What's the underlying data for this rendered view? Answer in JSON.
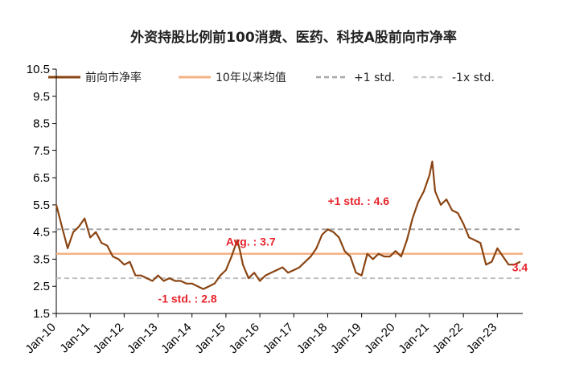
{
  "chart_data": {
    "type": "line",
    "title": "外资持股比例前100消费、医药、科技A股前向市净率",
    "xlabel": "",
    "ylabel": "",
    "ylim": [
      1.5,
      10.5
    ],
    "yticks": [
      10.5,
      9.5,
      8.5,
      7.5,
      6.5,
      5.5,
      4.5,
      3.5,
      2.5,
      1.5
    ],
    "xlim": [
      "2010-01",
      "2023-10"
    ],
    "xticks": [
      "Jan-10",
      "Jan-11",
      "Jan-12",
      "Jan-13",
      "Jan-14",
      "Jan-15",
      "Jan-16",
      "Jan-17",
      "Jan-18",
      "Jan-19",
      "Jan-20",
      "Jan-21",
      "Jan-22",
      "Jan-23"
    ],
    "grid": false,
    "legend_position": "top",
    "colors": {
      "line": "#8b4513",
      "avg": "#f4b183",
      "std": "#a6a6a6",
      "annotation": "#e8222a"
    },
    "series": [
      {
        "name": "前向市净率",
        "x": [
          "2010-01",
          "2010-03",
          "2010-05",
          "2010-07",
          "2010-09",
          "2010-11",
          "2011-01",
          "2011-03",
          "2011-05",
          "2011-07",
          "2011-09",
          "2011-11",
          "2012-01",
          "2012-03",
          "2012-05",
          "2012-07",
          "2012-09",
          "2012-11",
          "2013-01",
          "2013-03",
          "2013-05",
          "2013-07",
          "2013-09",
          "2013-11",
          "2014-01",
          "2014-03",
          "2014-05",
          "2014-07",
          "2014-09",
          "2014-11",
          "2015-01",
          "2015-03",
          "2015-05",
          "2015-06",
          "2015-07",
          "2015-09",
          "2015-11",
          "2016-01",
          "2016-03",
          "2016-05",
          "2016-07",
          "2016-09",
          "2016-11",
          "2017-01",
          "2017-03",
          "2017-05",
          "2017-07",
          "2017-09",
          "2017-11",
          "2018-01",
          "2018-03",
          "2018-05",
          "2018-07",
          "2018-09",
          "2018-11",
          "2019-01",
          "2019-03",
          "2019-05",
          "2019-07",
          "2019-09",
          "2019-11",
          "2020-01",
          "2020-03",
          "2020-05",
          "2020-07",
          "2020-09",
          "2020-11",
          "2021-01",
          "2021-02",
          "2021-03",
          "2021-05",
          "2021-07",
          "2021-09",
          "2021-11",
          "2022-01",
          "2022-03",
          "2022-05",
          "2022-07",
          "2022-09",
          "2022-11",
          "2023-01",
          "2023-03",
          "2023-05",
          "2023-07",
          "2023-09"
        ],
        "values": [
          5.5,
          4.7,
          3.9,
          4.5,
          4.7,
          5.0,
          4.3,
          4.5,
          4.1,
          4.0,
          3.6,
          3.5,
          3.3,
          3.4,
          2.9,
          2.9,
          2.8,
          2.7,
          2.9,
          2.7,
          2.8,
          2.7,
          2.7,
          2.6,
          2.6,
          2.5,
          2.4,
          2.5,
          2.6,
          2.9,
          3.1,
          3.6,
          4.2,
          3.8,
          3.3,
          2.8,
          3.0,
          2.7,
          2.9,
          3.0,
          3.1,
          3.2,
          3.0,
          3.1,
          3.2,
          3.4,
          3.6,
          3.9,
          4.4,
          4.6,
          4.5,
          4.3,
          3.8,
          3.6,
          3.0,
          2.9,
          3.7,
          3.5,
          3.7,
          3.6,
          3.6,
          3.8,
          3.6,
          4.2,
          5.0,
          5.6,
          6.0,
          6.6,
          7.1,
          6.0,
          5.5,
          5.7,
          5.3,
          5.2,
          4.8,
          4.3,
          4.2,
          4.1,
          3.3,
          3.4,
          3.9,
          3.6,
          3.3,
          3.3,
          3.4
        ]
      },
      {
        "name": "10年以来均值",
        "value": 3.7
      },
      {
        "name": "+1 std.",
        "value": 4.6
      },
      {
        "name": "-1x std.",
        "value": 2.8
      }
    ],
    "annotations": [
      {
        "text": "+1 std. : 4.6",
        "x": "2018-01",
        "y": 5.5
      },
      {
        "text": "Avg. : 3.7",
        "x": "2015-01",
        "y": 4.0
      },
      {
        "text": "-1 std. : 2.8",
        "x": "2013-01",
        "y": 1.9
      },
      {
        "text": "3.4",
        "x": "2023-09",
        "y": 3.05
      }
    ]
  }
}
